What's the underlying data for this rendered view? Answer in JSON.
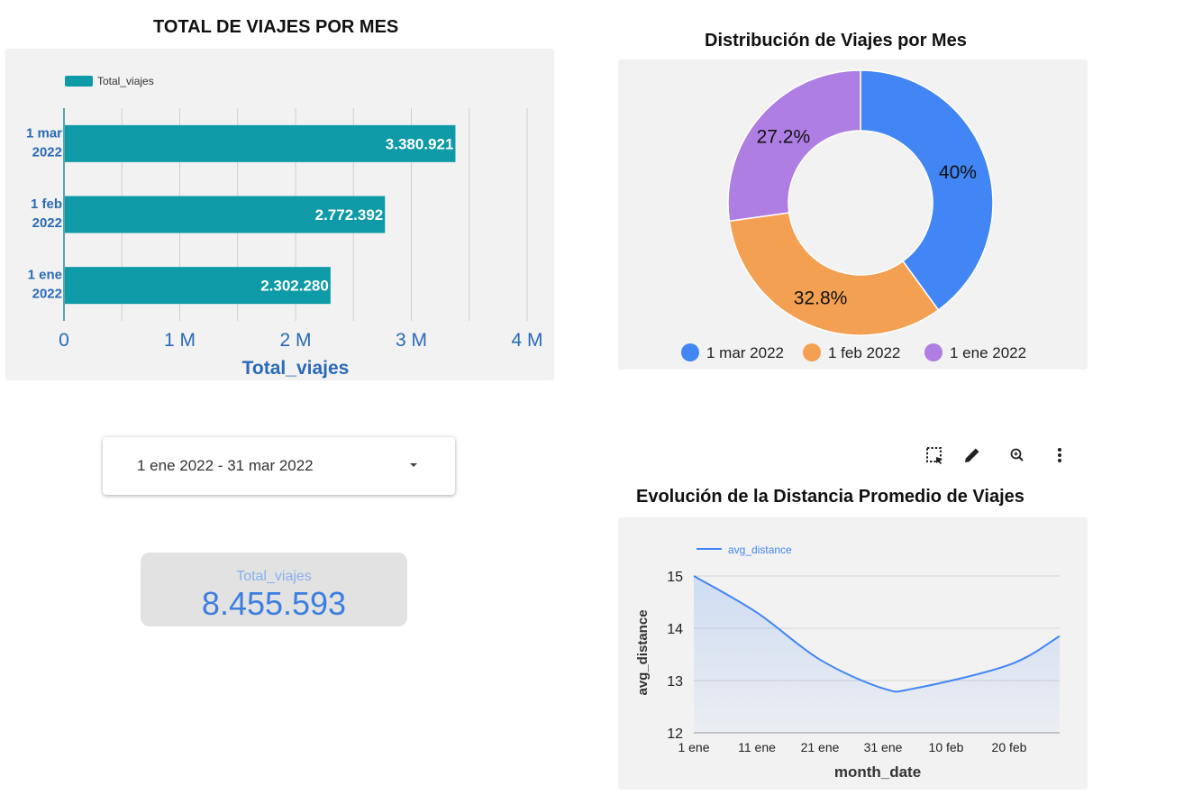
{
  "bar_chart": {
    "title": "TOTAL DE VIAJES POR MES",
    "legend": "Total_viajes",
    "xlabel": "Total_viajes",
    "bar_color": "#0e9aa7",
    "label_color": "#2a6ab8"
  },
  "donut_chart": {
    "title": "Distribución de Viajes por Mes",
    "colors": [
      "#4285f4",
      "#f4a052",
      "#ae7ee3"
    ]
  },
  "line_chart": {
    "title": "Evolución de la Distancia Promedio de Viajes",
    "legend": "avg_distance",
    "xlabel": "month_date",
    "ylabel": "avg_distance",
    "line_color": "#4285f4"
  },
  "filter": {
    "date_range": "1 ene 2022 - 31 mar 2022"
  },
  "scorecard": {
    "label": "Total_viajes",
    "value": "8.455.593"
  },
  "chart_data": [
    {
      "type": "bar",
      "orientation": "horizontal",
      "title": "TOTAL DE VIAJES POR MES",
      "categories": [
        [
          "1 mar",
          "2022"
        ],
        [
          "1 feb",
          "2022"
        ],
        [
          "1 ene",
          "2022"
        ]
      ],
      "series": [
        {
          "name": "Total_viajes",
          "values": [
            3380921,
            2772392,
            2302280
          ]
        }
      ],
      "data_labels": [
        "3.380.921",
        "2.772.392",
        "2.302.280"
      ],
      "xlabel": "Total_viajes",
      "xlim": [
        0,
        4000000
      ],
      "xticks": [
        0,
        1000000,
        2000000,
        3000000,
        4000000
      ],
      "xtick_labels": [
        "0",
        "1 M",
        "2 M",
        "3 M",
        "4 M"
      ],
      "grid": true,
      "legend_position": "top-left"
    },
    {
      "type": "pie",
      "donut": true,
      "title": "Distribución de Viajes por Mes",
      "labels": [
        "1 mar 2022",
        "1 feb 2022",
        "1 ene 2022"
      ],
      "values": [
        40,
        32.8,
        27.2
      ],
      "data_labels": [
        "40%",
        "32.8%",
        "27.2%"
      ],
      "legend_position": "bottom"
    },
    {
      "type": "area",
      "title": "Evolución de la Distancia Promedio de Viajes",
      "x": [
        "2022-01-01",
        "2022-01-11",
        "2022-01-21",
        "2022-01-31",
        "2022-02-05",
        "2022-02-20",
        "2022-02-28"
      ],
      "series": [
        {
          "name": "avg_distance",
          "values": [
            15.0,
            14.3,
            13.4,
            12.85,
            12.85,
            13.3,
            13.85
          ]
        }
      ],
      "xtick_labels": [
        "1 ene",
        "11 ene",
        "21 ene",
        "31 ene",
        "10 feb",
        "20 feb"
      ],
      "xlabel": "month_date",
      "ylabel": "avg_distance",
      "ylim": [
        12,
        15
      ],
      "yticks": [
        12,
        13,
        14,
        15
      ],
      "grid": true,
      "legend_position": "top-left"
    }
  ]
}
